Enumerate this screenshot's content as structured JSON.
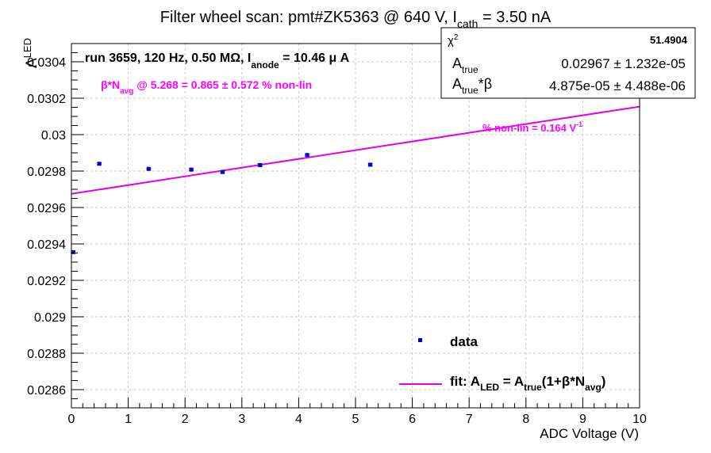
{
  "colors": {
    "data": "#0000cc",
    "fit": "#e600e6",
    "axis": "#000000",
    "grid": "#c8c8c8",
    "annotation": "#ff00ff"
  },
  "chart_data": {
    "type": "scatter",
    "title": {
      "main": "Filter wheel scan: pmt#ZK5363 @   640 V, I",
      "sub": "cath",
      "tail": " = 3.50 nA"
    },
    "xlabel": "ADC Voltage (V)",
    "ylabel": {
      "main": "A",
      "sub": "LED"
    },
    "xlim": [
      0,
      10
    ],
    "ylim": [
      0.0285,
      0.0305
    ],
    "grid": true,
    "x_ticks": [
      0,
      1,
      2,
      3,
      4,
      5,
      6,
      7,
      8,
      9,
      10
    ],
    "x_tick_labels": [
      "0",
      "1",
      "2",
      "3",
      "4",
      "5",
      "6",
      "7",
      "8",
      "9",
      "10"
    ],
    "y_ticks": [
      0.0286,
      0.0288,
      0.029,
      0.0292,
      0.0294,
      0.0296,
      0.0298,
      0.03,
      0.0302,
      0.0304
    ],
    "y_tick_labels": [
      "0.0286",
      "0.0288",
      "0.029",
      "0.0292",
      "0.0294",
      "0.0296",
      "0.0298",
      "0.03",
      "0.0302",
      "0.0304"
    ],
    "series": [
      {
        "name": "data",
        "type": "scatter",
        "x": [
          0.03,
          0.49,
          1.36,
          2.11,
          2.66,
          3.32,
          4.15,
          5.26
        ],
        "y": [
          0.029355,
          0.02984,
          0.029812,
          0.029808,
          0.029795,
          0.029833,
          0.029888,
          0.029835
        ],
        "yerr": [
          6e-06,
          5e-06,
          5e-06,
          5e-06,
          6e-06,
          7e-06,
          5e-06,
          6e-06
        ]
      },
      {
        "name": "fit",
        "type": "line",
        "x": [
          0.0,
          10.0
        ],
        "y": [
          0.029675,
          0.030154
        ]
      }
    ],
    "run_label": {
      "a": "run 3659, 120 Hz, 0.50 MΩ, I",
      "sub": "anode",
      "b": " = 10.46 μ A"
    },
    "beta_label": {
      "a": "β*N",
      "sub": "avg",
      "b": " @ 5.268 = 0.865 ± 0.572 % non-lin"
    },
    "nonlin_label": {
      "a": "% non-lin = 0.164 V",
      "sup": "-1"
    },
    "stats_box": {
      "chi2_label": "χ",
      "chi2_sup": "2",
      "chi2_value": "51.4904",
      "atrue_label": "A",
      "atrue_sub": "true",
      "atrue_value": "0.02967 ± 1.232e-05",
      "atb_label": "A",
      "atb_sub": "true",
      "atb_suffix": "*β",
      "atb_value": "4.875e-05 ± 4.488e-06"
    },
    "legend": {
      "placement": "bottom-right",
      "data_label": "data",
      "fit_label": {
        "p1": "fit: A",
        "s1": "LED",
        "p2": " = A",
        "s2": "true",
        "p3": "(1+β*N",
        "s3": "avg",
        "p4": ")"
      }
    }
  }
}
